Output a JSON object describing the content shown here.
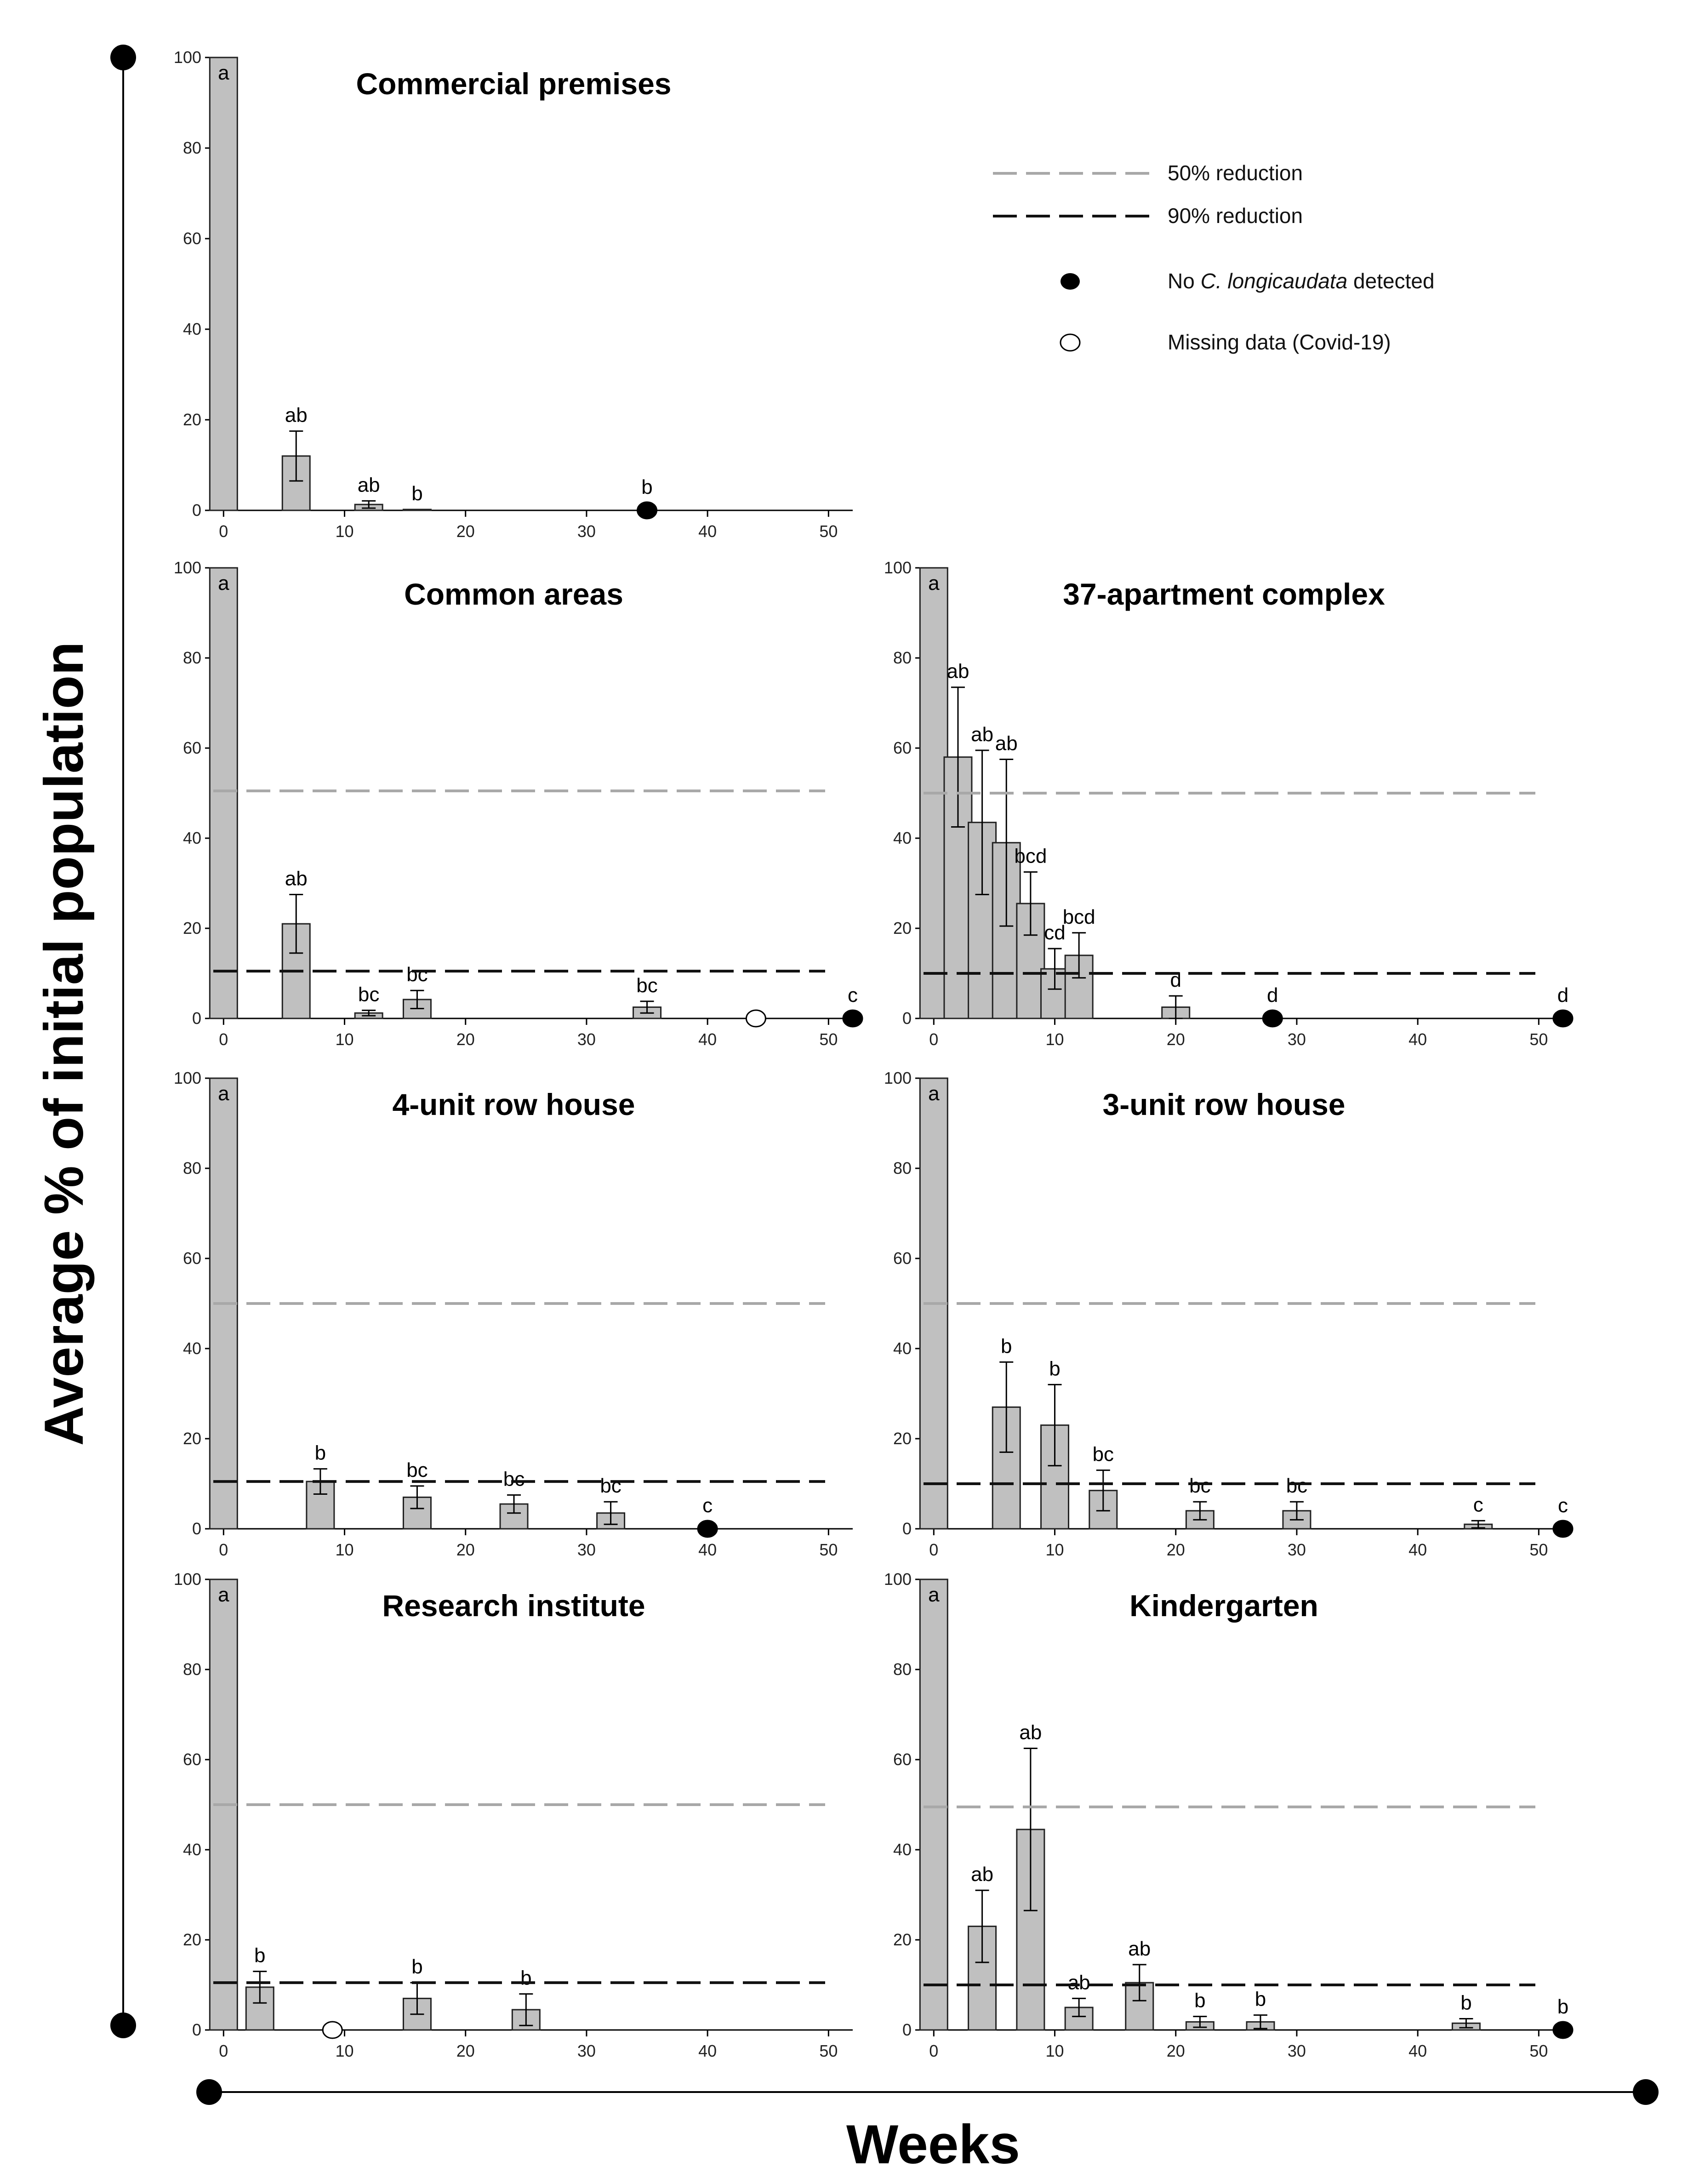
{
  "figure": {
    "ylabel": "Average % of initial population",
    "xlabel": "Weeks"
  },
  "legend": {
    "items": [
      {
        "label": "50% reduction",
        "symbol": "dashed-line-gray"
      },
      {
        "label": "90% reduction",
        "symbol": "dashed-line-black"
      },
      {
        "label_pre": "No ",
        "label_italic": "C. longicaudata",
        "label_post": " detected",
        "symbol": "filled-circle"
      },
      {
        "label": "Missing data (Covid-19)",
        "symbol": "open-circle"
      }
    ]
  },
  "colors": {
    "bar_fill": "#c0c0c0",
    "bar_stroke": "#222222",
    "ref50": "#a8a8a8",
    "ref90": "#111111"
  },
  "chart_data": [
    {
      "type": "bar",
      "title": "Commercial premises",
      "xlim": [
        -1,
        52
      ],
      "ylim": [
        0,
        100
      ],
      "xticks": [
        0,
        10,
        20,
        30,
        40,
        50
      ],
      "yticks": [
        0,
        20,
        40,
        60,
        80,
        100
      ],
      "ref_lines": [],
      "bars": [
        {
          "x": 0,
          "y": 100,
          "err": 0,
          "label": "a"
        },
        {
          "x": 6,
          "y": 12,
          "err": 5.5,
          "label": "ab"
        },
        {
          "x": 12,
          "y": 1.3,
          "err": 0.8,
          "label": "ab"
        },
        {
          "x": 16,
          "y": 0.2,
          "err": 0,
          "label": "b"
        }
      ],
      "markers": [
        {
          "x": 35,
          "type": "none",
          "label": "b"
        }
      ]
    },
    {
      "type": "bar",
      "title": "Common areas",
      "xlim": [
        -1,
        52
      ],
      "ylim": [
        0,
        100
      ],
      "xticks": [
        0,
        10,
        20,
        30,
        40,
        50
      ],
      "yticks": [
        0,
        20,
        40,
        60,
        80,
        100
      ],
      "ref_lines": [
        {
          "name": "50% reduction",
          "y": 50.5
        },
        {
          "name": "90% reduction",
          "y": 10.5
        }
      ],
      "bars": [
        {
          "x": 0,
          "y": 100,
          "err": 0,
          "label": "a"
        },
        {
          "x": 6,
          "y": 21,
          "err": 6.5,
          "label": "ab"
        },
        {
          "x": 12,
          "y": 1.2,
          "err": 0.6,
          "label": "bc"
        },
        {
          "x": 16,
          "y": 4.2,
          "err": 2,
          "label": "bc"
        },
        {
          "x": 35,
          "y": 2.5,
          "err": 1.3,
          "label": "bc"
        }
      ],
      "markers": [
        {
          "x": 44,
          "type": "missing",
          "label": ""
        },
        {
          "x": 52,
          "type": "none",
          "label": "c"
        }
      ]
    },
    {
      "type": "bar",
      "title": "37-apartment complex",
      "xlim": [
        -1,
        52
      ],
      "ylim": [
        0,
        100
      ],
      "xticks": [
        0,
        10,
        20,
        30,
        40,
        50
      ],
      "yticks": [
        0,
        20,
        40,
        60,
        80,
        100
      ],
      "ref_lines": [
        {
          "name": "50% reduction",
          "y": 50
        },
        {
          "name": "90% reduction",
          "y": 10
        }
      ],
      "bars": [
        {
          "x": 0,
          "y": 100,
          "err": 0,
          "label": "a"
        },
        {
          "x": 2,
          "y": 58,
          "err": 15.5,
          "label": "ab"
        },
        {
          "x": 4,
          "y": 43.5,
          "err": 16,
          "label": "ab"
        },
        {
          "x": 6,
          "y": 39,
          "err": 18.5,
          "label": "ab"
        },
        {
          "x": 8,
          "y": 25.5,
          "err": 7,
          "label": "bcd"
        },
        {
          "x": 10,
          "y": 11,
          "err": 4.5,
          "label": "cd"
        },
        {
          "x": 12,
          "y": 14,
          "err": 5,
          "label": "bcd"
        },
        {
          "x": 20,
          "y": 2.5,
          "err": 2.5,
          "label": "d"
        }
      ],
      "markers": [
        {
          "x": 28,
          "type": "none",
          "label": "d"
        },
        {
          "x": 52,
          "type": "none",
          "label": "d"
        }
      ]
    },
    {
      "type": "bar",
      "title": "4-unit row house",
      "xlim": [
        -1,
        52
      ],
      "ylim": [
        0,
        100
      ],
      "xticks": [
        0,
        10,
        20,
        30,
        40,
        50
      ],
      "yticks": [
        0,
        20,
        40,
        60,
        80,
        100
      ],
      "ref_lines": [
        {
          "name": "50% reduction",
          "y": 50
        },
        {
          "name": "90% reduction",
          "y": 10.5
        }
      ],
      "bars": [
        {
          "x": 0,
          "y": 100,
          "err": 0,
          "label": "a"
        },
        {
          "x": 8,
          "y": 10.5,
          "err": 2.8,
          "label": "b"
        },
        {
          "x": 16,
          "y": 7,
          "err": 2.5,
          "label": "bc"
        },
        {
          "x": 24,
          "y": 5.5,
          "err": 2,
          "label": "bc"
        },
        {
          "x": 32,
          "y": 3.5,
          "err": 2.5,
          "label": "bc"
        }
      ],
      "markers": [
        {
          "x": 40,
          "type": "none",
          "label": "c"
        }
      ]
    },
    {
      "type": "bar",
      "title": "3-unit row house",
      "xlim": [
        -1,
        52
      ],
      "ylim": [
        0,
        100
      ],
      "xticks": [
        0,
        10,
        20,
        30,
        40,
        50
      ],
      "yticks": [
        0,
        20,
        40,
        60,
        80,
        100
      ],
      "ref_lines": [
        {
          "name": "50% reduction",
          "y": 50
        },
        {
          "name": "90% reduction",
          "y": 10
        }
      ],
      "bars": [
        {
          "x": 0,
          "y": 100,
          "err": 0,
          "label": "a"
        },
        {
          "x": 6,
          "y": 27,
          "err": 10,
          "label": "b"
        },
        {
          "x": 10,
          "y": 23,
          "err": 9,
          "label": "b"
        },
        {
          "x": 14,
          "y": 8.5,
          "err": 4.5,
          "label": "bc"
        },
        {
          "x": 22,
          "y": 4,
          "err": 2,
          "label": "bc"
        },
        {
          "x": 30,
          "y": 4,
          "err": 2,
          "label": "bc"
        },
        {
          "x": 45,
          "y": 1,
          "err": 0.8,
          "label": "c"
        }
      ],
      "markers": [
        {
          "x": 52,
          "type": "none",
          "label": "c"
        }
      ]
    },
    {
      "type": "bar",
      "title": "Research institute",
      "xlim": [
        -1,
        52
      ],
      "ylim": [
        0,
        100
      ],
      "xticks": [
        0,
        10,
        20,
        30,
        40,
        50
      ],
      "yticks": [
        0,
        20,
        40,
        60,
        80,
        100
      ],
      "ref_lines": [
        {
          "name": "50% reduction",
          "y": 50
        },
        {
          "name": "90% reduction",
          "y": 10.5
        }
      ],
      "bars": [
        {
          "x": 0,
          "y": 100,
          "err": 0,
          "label": "a"
        },
        {
          "x": 3,
          "y": 9.5,
          "err": 3.5,
          "label": "b"
        },
        {
          "x": 16,
          "y": 7,
          "err": 3.5,
          "label": "b"
        },
        {
          "x": 25,
          "y": 4.5,
          "err": 3.5,
          "label": "b"
        }
      ],
      "markers": [
        {
          "x": 9,
          "type": "missing",
          "label": ""
        }
      ]
    },
    {
      "type": "bar",
      "title": "Kindergarten",
      "xlim": [
        -1,
        52
      ],
      "ylim": [
        0,
        100
      ],
      "xticks": [
        0,
        10,
        20,
        30,
        40,
        50
      ],
      "yticks": [
        0,
        20,
        40,
        60,
        80,
        100
      ],
      "ref_lines": [
        {
          "name": "50% reduction",
          "y": 49.5
        },
        {
          "name": "90% reduction",
          "y": 10
        }
      ],
      "bars": [
        {
          "x": 0,
          "y": 100,
          "err": 0,
          "label": "a"
        },
        {
          "x": 4,
          "y": 23,
          "err": 8,
          "label": "ab"
        },
        {
          "x": 8,
          "y": 44.5,
          "err": 18,
          "label": "ab"
        },
        {
          "x": 12,
          "y": 5,
          "err": 2,
          "label": "ab"
        },
        {
          "x": 17,
          "y": 10.5,
          "err": 4,
          "label": "ab"
        },
        {
          "x": 22,
          "y": 1.8,
          "err": 1.2,
          "label": "b"
        },
        {
          "x": 27,
          "y": 1.8,
          "err": 1.5,
          "label": "b"
        },
        {
          "x": 44,
          "y": 1.5,
          "err": 1,
          "label": "b"
        }
      ],
      "markers": [
        {
          "x": 52,
          "type": "none",
          "label": "b"
        }
      ]
    }
  ]
}
